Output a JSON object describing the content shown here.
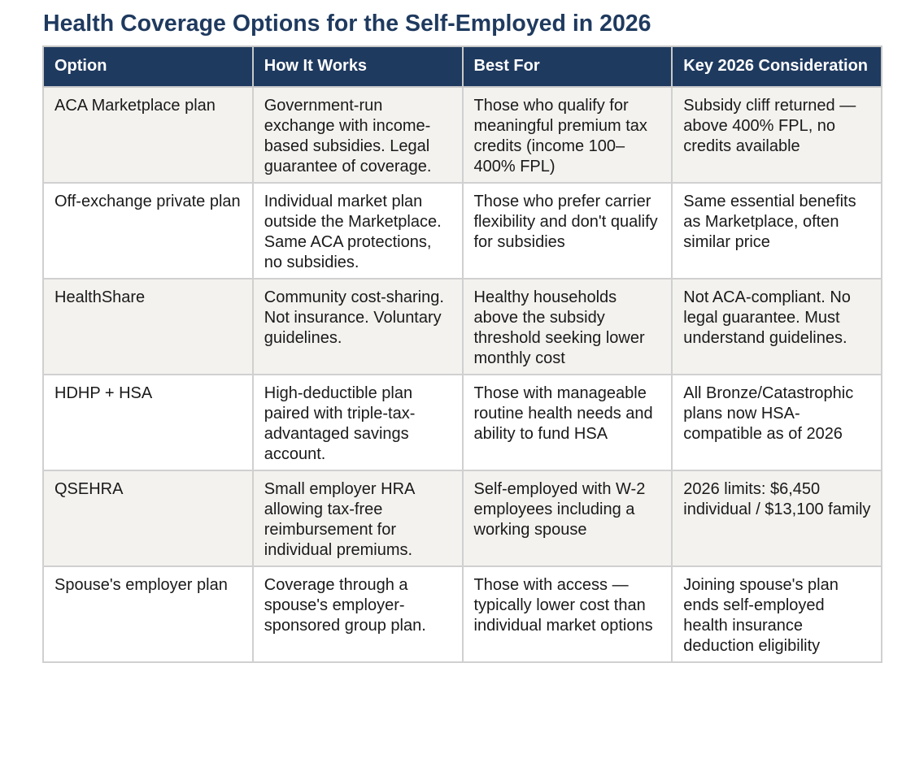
{
  "title": "Health Coverage Options for the Self-Employed in 2026",
  "colors": {
    "title": "#1f3a5f",
    "header_bg": "#1f3a5f",
    "header_text": "#ffffff",
    "row_alt_bg": "#f3f2ef",
    "border": "#d0d0d0"
  },
  "table": {
    "headers": [
      "Option",
      "How It Works",
      "Best For",
      "Key 2026 Consideration"
    ],
    "rows": [
      {
        "option": "ACA Marketplace plan",
        "how": "Government-run exchange with income-based subsidies. Legal guarantee of coverage.",
        "best": "Those who qualify for meaningful premium tax credits (income 100–400% FPL)",
        "key": "Subsidy cliff returned — above 400% FPL, no credits available"
      },
      {
        "option": "Off-exchange private plan",
        "how": "Individual market plan outside the Marketplace. Same ACA protections, no subsidies.",
        "best": "Those who prefer carrier flexibility and don't qualify for subsidies",
        "key": "Same essential benefits as Marketplace, often similar price"
      },
      {
        "option": "HealthShare",
        "how": "Community cost-sharing. Not insurance. Voluntary guidelines.",
        "best": "Healthy households above the subsidy threshold seeking lower monthly cost",
        "key": "Not ACA-compliant. No legal guarantee. Must understand guidelines."
      },
      {
        "option": "HDHP + HSA",
        "how": "High-deductible plan paired with triple-tax-advantaged savings account.",
        "best": "Those with manageable routine health needs and ability to fund HSA",
        "key": "All Bronze/Catastrophic plans now HSA-compatible as of 2026"
      },
      {
        "option": "QSEHRA",
        "how": "Small employer HRA allowing tax-free reimbursement for individual premiums.",
        "best": "Self-employed with W-2 employees including a working spouse",
        "key": "2026 limits: $6,450 individual / $13,100 family"
      },
      {
        "option": "Spouse's employer plan",
        "how": "Coverage through a spouse's employer-sponsored group plan.",
        "best": "Those with access — typically lower cost than individual market options",
        "key": "Joining spouse's plan ends self-employed health insurance deduction eligibility"
      }
    ]
  }
}
